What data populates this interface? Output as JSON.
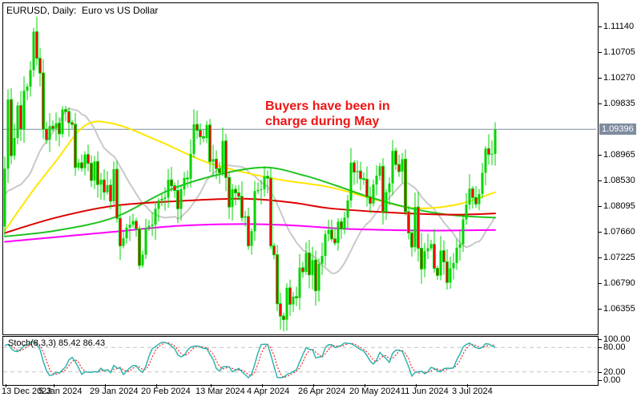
{
  "window": {
    "title": "EURUSD, Daily:  Euro vs US Dollar"
  },
  "annotation": {
    "line1": "Buyers have been in",
    "line2": "charge during May"
  },
  "price_scale": {
    "ticks": [
      "1.11140",
      "1.10705",
      "1.10270",
      "1.09835",
      "1.08965",
      "1.08530",
      "1.08095",
      "1.07660",
      "1.07225",
      "1.06790",
      "1.06355"
    ],
    "current": "1.09396"
  },
  "time_scale": {
    "ticks": [
      {
        "i": 0,
        "label": "13 Dec 2023"
      },
      {
        "i": 15,
        "label": "5 Jan 2024"
      },
      {
        "i": 31,
        "label": "29 Jan 2024"
      },
      {
        "i": 47,
        "label": "20 Feb 2024"
      },
      {
        "i": 64,
        "label": "13 Mar 2024"
      },
      {
        "i": 80,
        "label": "4 Apr 2024"
      },
      {
        "i": 96,
        "label": "26 Apr 2024"
      },
      {
        "i": 112,
        "label": "20 May 2024"
      },
      {
        "i": 128,
        "label": "11 Jun 2024"
      },
      {
        "i": 144,
        "label": "3 Jul 2024"
      }
    ]
  },
  "indicator": {
    "name": "Stoch(8,3,3)",
    "values": "85.42 86.43",
    "levels": [
      "100.00",
      "80.00",
      "20.00",
      "0.00"
    ]
  },
  "colors": {
    "bull": "#00d400",
    "bear_fill": "#ff0000",
    "wick": "#00d400",
    "ma_gray": "#c9c9c9",
    "ma_yellow": "#ffe600",
    "ma_green": "#21c421",
    "ma_red": "#dd0000",
    "ma_magenta": "#ff00ff",
    "price_line": "#7e8ca0",
    "annotation": "#ee1414",
    "stoch_main": "#20b2aa",
    "stoch_signal": "#ff0000",
    "level_dash": "#c4c4c4",
    "text": "#000000",
    "background": "#ffffff"
  },
  "chart_data": {
    "type": "candlestick",
    "title": "EURUSD Daily — Euro vs US Dollar",
    "x_range": [
      "13 Dec 2023",
      "17 Jul 2024"
    ],
    "price_axis_ticks": [
      1.1114,
      1.10705,
      1.1027,
      1.09835,
      1.09396,
      1.08965,
      1.0853,
      1.08095,
      1.0766,
      1.07225,
      1.0679,
      1.06355
    ],
    "current_price": 1.09396,
    "first_open": 1.0775,
    "closes": [
      1.0873,
      1.099,
      1.0895,
      1.0925,
      1.098,
      1.094,
      1.1005,
      1.1012,
      1.104,
      1.1105,
      1.106,
      1.1035,
      1.094,
      1.0922,
      1.0945,
      1.0941,
      1.095,
      1.0932,
      1.0973,
      1.097,
      1.0951,
      1.0948,
      1.0875,
      1.0883,
      1.0874,
      1.0897,
      1.0882,
      1.0853,
      1.0885,
      1.0846,
      1.0854,
      1.0833,
      1.0845,
      1.0818,
      1.0872,
      1.0789,
      1.0742,
      1.0755,
      1.0773,
      1.0778,
      1.0784,
      1.0771,
      1.0709,
      1.0727,
      1.0773,
      1.0776,
      1.0778,
      1.0805,
      1.0819,
      1.0822,
      1.0824,
      1.0854,
      1.0844,
      1.0836,
      1.0805,
      1.0838,
      1.0857,
      1.0856,
      1.0898,
      1.0948,
      1.0938,
      1.0927,
      1.0925,
      1.0947,
      1.0885,
      1.0889,
      1.0873,
      1.0866,
      1.092,
      1.0858,
      1.0808,
      1.0838,
      1.0832,
      1.0826,
      1.079,
      1.0792,
      1.0742,
      1.0767,
      1.0835,
      1.0837,
      1.0838,
      1.086,
      1.0857,
      1.0742,
      1.0727,
      1.0644,
      1.0623,
      1.0617,
      1.0671,
      1.0643,
      1.0656,
      1.0654,
      1.0705,
      1.0698,
      1.073,
      1.0693,
      1.0718,
      1.0666,
      1.0712,
      1.0725,
      1.0762,
      1.0769,
      1.0754,
      1.0747,
      1.0783,
      1.0771,
      1.079,
      1.0819,
      1.0883,
      1.0867,
      1.0869,
      1.0856,
      1.0855,
      1.0825,
      1.0814,
      1.0846,
      1.0861,
      1.0877,
      1.08,
      1.0833,
      1.0848,
      1.0903,
      1.088,
      1.0868,
      1.0889,
      1.08,
      1.0764,
      1.074,
      1.0808,
      1.0738,
      1.0703,
      1.0733,
      1.0738,
      1.0745,
      1.0704,
      1.0692,
      1.0734,
      1.0715,
      1.068,
      1.0704,
      1.0713,
      1.0739,
      1.0745,
      1.0787,
      1.0812,
      1.0839,
      1.0824,
      1.0813,
      1.083,
      1.0866,
      1.0907,
      1.0897,
      1.0898,
      1.0939
    ],
    "ma_prehistory": [
      1.0888,
      1.0854,
      1.0852,
      1.087,
      1.0912,
      1.0895,
      1.0884,
      1.0887,
      1.0902,
      1.0838,
      1.081,
      1.0788,
      1.0765,
      1.079,
      1.0795,
      1.0782,
      1.0768,
      1.0773,
      1.076,
      1.0775
    ],
    "overlays": [
      {
        "name": "sma20",
        "color_key": "ma_gray",
        "computed_period": 20
      },
      {
        "name": "sma50",
        "color_key": "ma_yellow",
        "points": [
          [
            0,
            1.0768
          ],
          [
            8,
            1.083
          ],
          [
            16,
            1.0886
          ],
          [
            25,
            1.0946
          ],
          [
            34,
            1.0949
          ],
          [
            48,
            1.092
          ],
          [
            64,
            1.0882
          ],
          [
            84,
            1.0856
          ],
          [
            101,
            1.0842
          ],
          [
            116,
            1.082
          ],
          [
            128,
            1.0806
          ],
          [
            141,
            1.0812
          ],
          [
            153,
            1.0833
          ]
        ]
      },
      {
        "name": "sma100",
        "color_key": "ma_green",
        "points": [
          [
            0,
            1.0758
          ],
          [
            16,
            1.0768
          ],
          [
            34,
            1.079
          ],
          [
            51,
            1.0836
          ],
          [
            66,
            1.0862
          ],
          [
            81,
            1.0875
          ],
          [
            93,
            1.0862
          ],
          [
            103,
            1.0845
          ],
          [
            112,
            1.0828
          ],
          [
            122,
            1.0812
          ],
          [
            132,
            1.08
          ],
          [
            142,
            1.0793
          ],
          [
            153,
            1.079
          ]
        ]
      },
      {
        "name": "sma150",
        "color_key": "ma_red",
        "points": [
          [
            0,
            1.0764
          ],
          [
            16,
            1.079
          ],
          [
            34,
            1.081
          ],
          [
            54,
            1.0818
          ],
          [
            74,
            1.0822
          ],
          [
            89,
            1.0816
          ],
          [
            101,
            1.0806
          ],
          [
            116,
            1.08
          ],
          [
            131,
            1.0796
          ],
          [
            142,
            1.0795
          ],
          [
            153,
            1.0797
          ]
        ]
      },
      {
        "name": "sma200",
        "color_key": "ma_magenta",
        "points": [
          [
            0,
            1.0749
          ],
          [
            16,
            1.0757
          ],
          [
            34,
            1.0766
          ],
          [
            54,
            1.0776
          ],
          [
            74,
            1.0779
          ],
          [
            89,
            1.0777
          ],
          [
            106,
            1.0771
          ],
          [
            120,
            1.0769
          ],
          [
            135,
            1.0768
          ],
          [
            153,
            1.0769
          ]
        ]
      }
    ],
    "stochastic": {
      "k": 8,
      "d": 3,
      "slowing": 3,
      "last_k": 85.42,
      "last_d": 86.43,
      "ylim": [
        0,
        100
      ],
      "dashed_levels": [
        80,
        20
      ]
    }
  }
}
